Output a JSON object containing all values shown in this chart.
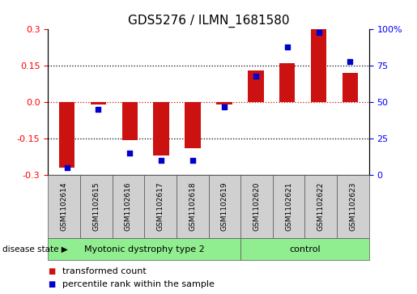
{
  "title": "GDS5276 / ILMN_1681580",
  "samples": [
    "GSM1102614",
    "GSM1102615",
    "GSM1102616",
    "GSM1102617",
    "GSM1102618",
    "GSM1102619",
    "GSM1102620",
    "GSM1102621",
    "GSM1102622",
    "GSM1102623"
  ],
  "red_values": [
    -0.27,
    -0.01,
    -0.155,
    -0.22,
    -0.19,
    -0.01,
    0.13,
    0.16,
    0.3,
    0.12
  ],
  "blue_percentiles": [
    5,
    45,
    15,
    10,
    10,
    47,
    68,
    88,
    98,
    78
  ],
  "ylim_left": [
    -0.3,
    0.3
  ],
  "ylim_right": [
    0,
    100
  ],
  "yticks_left": [
    -0.3,
    -0.15,
    0.0,
    0.15,
    0.3
  ],
  "yticks_right": [
    0,
    25,
    50,
    75,
    100
  ],
  "ytick_labels_right": [
    "0",
    "25",
    "50",
    "75",
    "100%"
  ],
  "bar_color": "#cc1111",
  "dot_color": "#0000cc",
  "bar_width": 0.5,
  "group_box_color": "#d0d0d0",
  "green_color": "#90ee90",
  "groups": [
    {
      "start": 0,
      "end": 5,
      "label": "Myotonic dystrophy type 2"
    },
    {
      "start": 6,
      "end": 9,
      "label": "control"
    }
  ],
  "disease_state_label": "disease state",
  "legend_red": "transformed count",
  "legend_blue": "percentile rank within the sample",
  "title_fontsize": 11,
  "tick_fontsize": 8,
  "sample_fontsize": 6.5,
  "group_fontsize": 8,
  "legend_fontsize": 8
}
